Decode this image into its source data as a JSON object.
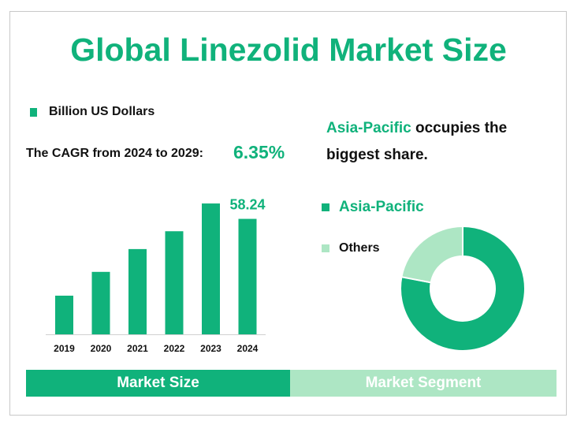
{
  "title": "Global Linezolid Market Size",
  "unit_legend": "Billion US Dollars",
  "cagr_label": "The CAGR from 2024 to 2029:",
  "cagr_value": "6.35%",
  "right_text": {
    "highlight": "Asia-Pacific",
    "rest": " occupies the biggest share."
  },
  "donut_legend": {
    "primary": "Asia-Pacific",
    "secondary": "Others"
  },
  "tabs": {
    "market_size": "Market Size",
    "market_segment": "Market Segment"
  },
  "colors": {
    "primary": "#10b27b",
    "secondary": "#ade6c4"
  },
  "chart_data": [
    {
      "type": "bar",
      "categories": [
        "2019",
        "2020",
        "2021",
        "2022",
        "2023",
        "2024"
      ],
      "values": [
        19.5,
        31.5,
        43.0,
        52.0,
        66.0,
        58.24
      ],
      "data_labels": {
        "2024": "58.24"
      },
      "ylim": [
        0,
        70
      ],
      "title": "",
      "xlabel": "",
      "ylabel": ""
    },
    {
      "type": "pie",
      "style": "donut",
      "labels": [
        "Asia-Pacific",
        "Others"
      ],
      "values": [
        78,
        22
      ]
    }
  ]
}
